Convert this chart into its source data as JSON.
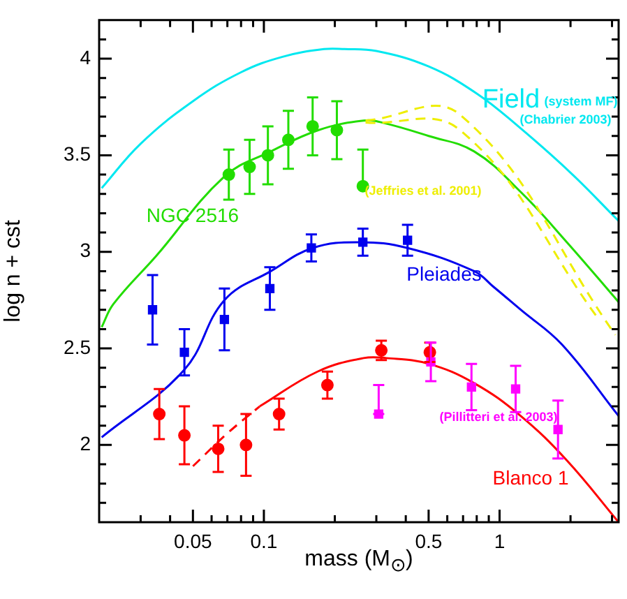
{
  "chart_data": {
    "type": "scatter",
    "xlabel": "mass (M$_{⊙}$)",
    "ylabel": "log n + cst",
    "log": "x",
    "grid": false,
    "legend": false,
    "xlim": [
      0.02,
      3.2
    ],
    "ylim": [
      1.6,
      4.2
    ],
    "xticks": [
      {
        "value": 0.03,
        "label": null
      },
      {
        "value": 0.04,
        "label": null
      },
      0.05,
      {
        "value": 0.06,
        "label": null
      },
      {
        "value": 0.07,
        "label": null
      },
      {
        "value": 0.08,
        "label": null
      },
      {
        "value": 0.09,
        "label": null
      },
      0.1,
      {
        "value": 0.2,
        "label": null
      },
      {
        "value": 0.3,
        "label": null
      },
      {
        "value": 0.4,
        "label": null
      },
      0.5,
      {
        "value": 0.6,
        "label": null
      },
      {
        "value": 0.7,
        "label": null
      },
      {
        "value": 0.8,
        "label": null
      },
      {
        "value": 0.9,
        "label": null
      },
      1,
      {
        "value": 2,
        "label": null
      },
      {
        "value": 3,
        "label": null
      }
    ],
    "yticks": [
      {
        "value": 1.7,
        "label": null
      },
      {
        "value": 1.8,
        "label": null
      },
      {
        "value": 1.9,
        "label": null
      },
      2,
      {
        "value": 2.1,
        "label": null
      },
      {
        "value": 2.2,
        "label": null
      },
      {
        "value": 2.3,
        "label": null
      },
      {
        "value": 2.4,
        "label": null
      },
      2.5,
      {
        "value": 2.6,
        "label": null
      },
      {
        "value": 2.7,
        "label": null
      },
      {
        "value": 2.8,
        "label": null
      },
      {
        "value": 2.9,
        "label": null
      },
      3,
      {
        "value": 3.1,
        "label": null
      },
      {
        "value": 3.2,
        "label": null
      },
      {
        "value": 3.3,
        "label": null
      },
      {
        "value": 3.4,
        "label": null
      },
      3.5,
      {
        "value": 3.6,
        "label": null
      },
      {
        "value": 3.7,
        "label": null
      },
      {
        "value": 3.8,
        "label": null
      },
      {
        "value": 3.9,
        "label": null
      },
      4,
      {
        "value": 4.1,
        "label": null
      }
    ],
    "annotations": [
      "(system MF)",
      "(Chabrier 2003)"
    ],
    "series": [
      {
        "name": "Field",
        "type": "line",
        "color": "#00e8f0",
        "marker": "none",
        "line_style": "solid",
        "x": [
          0.0205,
          0.03,
          0.05,
          0.08,
          0.12,
          0.18,
          0.22,
          0.3,
          0.5,
          0.8,
          1.2,
          2,
          3.2
        ],
        "values": [
          3.33,
          3.56,
          3.78,
          3.93,
          4.01,
          4.05,
          4.05,
          4.04,
          3.96,
          3.82,
          3.65,
          3.41,
          3.16
        ]
      },
      {
        "type": "line",
        "color": "#22dd00",
        "marker": "none",
        "line_style": "solid",
        "x": [
          0.0205,
          0.023,
          0.035,
          0.068,
          0.107,
          0.17,
          0.265,
          0.316,
          0.5,
          0.78,
          1.23,
          1.93,
          3.2
        ],
        "values": [
          2.61,
          2.73,
          2.98,
          3.39,
          3.52,
          3.63,
          3.68,
          3.67,
          3.6,
          3.52,
          3.31,
          3.05,
          2.74
        ]
      },
      {
        "name": "NGC 2516",
        "type": "scatter",
        "color": "#22dd00",
        "marker": "circle",
        "x": [
          0.071,
          0.087,
          0.104,
          0.127,
          0.161,
          0.204,
          0.263
        ],
        "values": [
          3.4,
          3.44,
          3.5,
          3.58,
          3.65,
          3.63,
          3.34
        ],
        "errors": [
          0.13,
          0.14,
          0.15,
          0.15,
          0.15,
          0.15,
          [
            3.34,
            3.53
          ]
        ]
      },
      {
        "type": "line",
        "color": "#0000ee",
        "marker": "none",
        "line_style": "solid",
        "x": [
          0.0205,
          0.046,
          0.068,
          0.107,
          0.161,
          0.254,
          0.407,
          0.78,
          0.94,
          1.23,
          1.84,
          3.2
        ],
        "values": [
          2.04,
          2.39,
          2.75,
          2.9,
          3.02,
          3.05,
          3.02,
          2.9,
          2.82,
          2.7,
          2.52,
          2.15
        ]
      },
      {
        "name": "Pleiades",
        "type": "scatter",
        "color": "#0000ee",
        "marker": "square",
        "x": [
          0.0337,
          0.046,
          0.068,
          0.106,
          0.159,
          0.263,
          0.407
        ],
        "values": [
          2.7,
          2.48,
          2.65,
          2.81,
          3.02,
          3.05,
          3.06
        ],
        "errors": [
          0.18,
          0.12,
          0.16,
          0.11,
          0.07,
          0.07,
          0.08
        ]
      },
      {
        "type": "line",
        "color": "#ff0000",
        "marker": "none",
        "line_style": "dashed",
        "x": [
          0.05,
          0.07,
          0.096
        ],
        "values": [
          1.89,
          2.06,
          2.2
        ]
      },
      {
        "type": "line",
        "color": "#ff0000",
        "marker": "none",
        "line_style": "solid",
        "x": [
          0.096,
          0.169,
          0.265,
          0.33,
          0.5,
          0.78,
          1.23,
          1.93,
          3.2
        ],
        "values": [
          2.2,
          2.38,
          2.45,
          2.45,
          2.42,
          2.32,
          2.15,
          1.92,
          1.6
        ]
      },
      {
        "name": "Blanco 1",
        "type": "scatter",
        "color": "#ff0000",
        "marker": "circle",
        "x": [
          0.036,
          0.046,
          0.064,
          0.084,
          0.116,
          0.186,
          0.315,
          0.506
        ],
        "values": [
          2.16,
          2.05,
          1.98,
          2.0,
          2.16,
          2.31,
          2.49,
          2.48
        ],
        "errors": [
          0.13,
          0.15,
          0.12,
          0.16,
          0.08,
          0.07,
          0.05,
          0.05
        ]
      },
      {
        "name": "(Pillitteri et al. 2003)",
        "type": "scatter",
        "color": "#ff00ff",
        "marker": "square",
        "x": [
          0.307,
          0.511,
          0.76,
          1.17,
          1.77
        ],
        "values": [
          2.16,
          2.43,
          2.3,
          2.29,
          2.08
        ],
        "errors": [
          [
            2.16,
            2.31
          ],
          0.1,
          0.12,
          0.12,
          0.15
        ]
      },
      {
        "name": "(Jeffries et al. 2001)",
        "type": "line",
        "color": "#eeee00",
        "marker": "none",
        "line_style": "dashed",
        "x": [
          0.27,
          0.68,
          3.1
        ],
        "values": [
          3.68,
          3.71,
          2.57
        ]
      },
      {
        "type": "line",
        "color": "#eeee00",
        "marker": "none",
        "line_style": "dashed",
        "x": [
          0.27,
          0.68,
          2.6
        ],
        "values": [
          3.67,
          3.63,
          2.66
        ]
      }
    ]
  }
}
